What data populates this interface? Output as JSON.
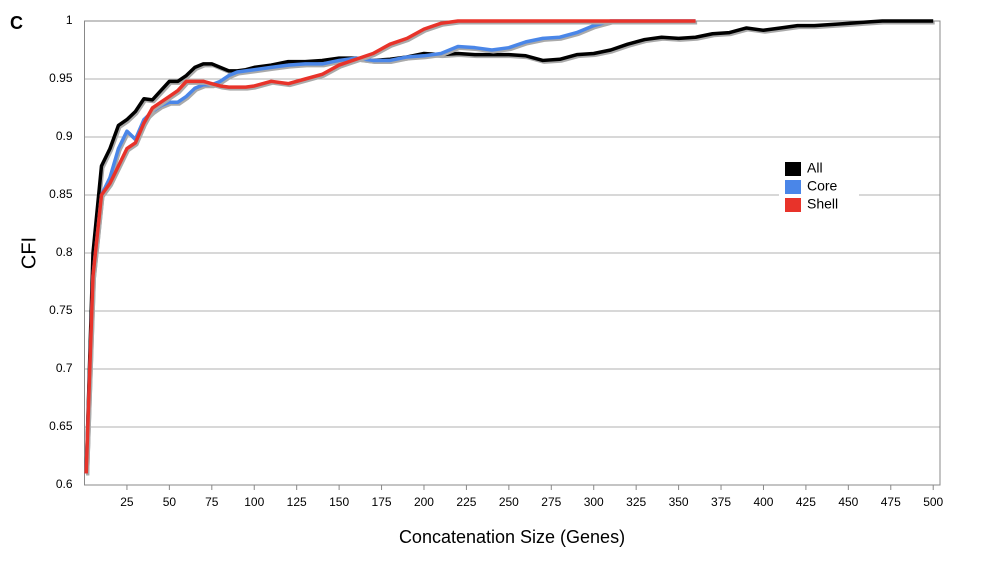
{
  "chart_data": {
    "type": "line",
    "panel_label": "C",
    "x_label": "Concatenation Size (Genes)",
    "y_label": "CFI",
    "x": [
      1,
      5,
      10,
      15,
      20,
      25,
      30,
      35,
      40,
      45,
      50,
      55,
      60,
      65,
      70,
      75,
      80,
      85,
      90,
      95,
      100,
      110,
      120,
      130,
      140,
      150,
      160,
      170,
      180,
      190,
      200,
      210,
      220,
      230,
      240,
      250,
      260,
      270,
      280,
      290,
      300,
      310,
      320,
      330,
      340,
      350,
      360,
      370,
      380,
      390,
      400,
      410,
      420,
      430,
      440,
      450,
      460,
      470,
      480,
      490,
      500
    ],
    "series": [
      {
        "name": "All",
        "color": "#000000",
        "values": [
          0.61,
          0.8,
          0.875,
          0.89,
          0.91,
          0.915,
          0.922,
          0.933,
          0.932,
          0.94,
          0.948,
          0.948,
          0.953,
          0.96,
          0.963,
          0.963,
          0.96,
          0.957,
          0.957,
          0.958,
          0.96,
          0.962,
          0.965,
          0.965,
          0.966,
          0.968,
          0.968,
          0.966,
          0.967,
          0.969,
          0.972,
          0.971,
          0.972,
          0.971,
          0.971,
          0.971,
          0.97,
          0.966,
          0.967,
          0.971,
          0.972,
          0.975,
          0.98,
          0.984,
          0.986,
          0.985,
          0.986,
          0.989,
          0.99,
          0.994,
          0.992,
          0.994,
          0.996,
          0.996,
          0.997,
          0.998,
          0.999,
          1,
          1,
          1,
          1
        ]
      },
      {
        "name": "Core",
        "color": "#4a86e8",
        "values": [
          0.61,
          0.78,
          0.85,
          0.865,
          0.89,
          0.905,
          0.898,
          0.915,
          0.922,
          0.927,
          0.93,
          0.93,
          0.935,
          0.942,
          0.945,
          0.945,
          0.948,
          0.953,
          0.956,
          0.957,
          0.958,
          0.96,
          0.962,
          0.963,
          0.963,
          0.966,
          0.968,
          0.966,
          0.966,
          0.969,
          0.97,
          0.972,
          0.978,
          0.977,
          0.975,
          0.977,
          0.982,
          0.985,
          0.986,
          0.99,
          0.996,
          1,
          1,
          1,
          1,
          1,
          1,
          null,
          null,
          null,
          null,
          null,
          null,
          null,
          null,
          null,
          null,
          null,
          null,
          null,
          null
        ]
      },
      {
        "name": "Shell",
        "color": "#e8332a",
        "values": [
          0.61,
          0.78,
          0.85,
          0.86,
          0.875,
          0.89,
          0.895,
          0.912,
          0.925,
          0.93,
          0.935,
          0.94,
          0.948,
          0.948,
          0.948,
          0.946,
          0.944,
          0.943,
          0.943,
          0.943,
          0.944,
          0.948,
          0.946,
          0.95,
          0.954,
          0.962,
          0.967,
          0.972,
          0.98,
          0.985,
          0.993,
          0.998,
          1,
          1,
          1,
          1,
          1,
          1,
          1,
          1,
          1,
          1,
          1,
          1,
          1,
          1,
          1,
          null,
          null,
          null,
          null,
          null,
          null,
          null,
          null,
          null,
          null,
          null,
          null,
          null,
          null
        ]
      }
    ],
    "xlim": [
      0,
      504
    ],
    "xticks": [
      25,
      50,
      75,
      100,
      125,
      150,
      175,
      200,
      225,
      250,
      275,
      300,
      325,
      350,
      375,
      400,
      425,
      450,
      475,
      500
    ],
    "ylim": [
      0.6,
      1
    ],
    "yticks": [
      0.6,
      0.65,
      0.7,
      0.75,
      0.8,
      0.85,
      0.9,
      0.95,
      1
    ],
    "grid": true,
    "legend": "right"
  }
}
